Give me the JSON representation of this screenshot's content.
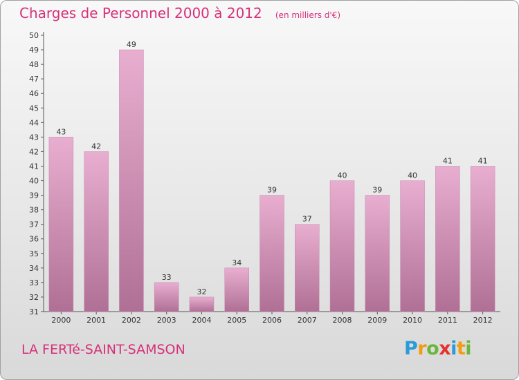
{
  "header": {
    "title": "Charges de Personnel 2000 à 2012",
    "subtitle": "(en milliers d'€)"
  },
  "footer": {
    "commune": "LA FERTé-SAINT-SAMSON",
    "logo": {
      "letters": [
        "P",
        "r",
        "o",
        "x",
        "i",
        "t",
        "i"
      ],
      "colors": [
        "#2a9ad8",
        "#f39c12",
        "#6ab73c",
        "#e5322d",
        "#2a9ad8",
        "#f39c12",
        "#6ab73c"
      ]
    }
  },
  "colors": {
    "title": "#d6307a",
    "bar_light": "#e8aed0",
    "bar_dark": "#b07095"
  },
  "chart_data": {
    "type": "bar",
    "categories": [
      "2000",
      "2001",
      "2002",
      "2003",
      "2004",
      "2005",
      "2006",
      "2007",
      "2008",
      "2009",
      "2010",
      "2011",
      "2012"
    ],
    "values": [
      43,
      42,
      49,
      33,
      32,
      34,
      39,
      37,
      40,
      39,
      40,
      41,
      41
    ],
    "ylim": [
      31,
      50
    ],
    "yticks": [
      31,
      32,
      33,
      34,
      35,
      36,
      37,
      38,
      39,
      40,
      41,
      42,
      43,
      44,
      45,
      46,
      47,
      48,
      49,
      50
    ],
    "grid": false,
    "title": "Charges de Personnel 2000 à 2012",
    "xlabel": "",
    "ylabel": ""
  }
}
